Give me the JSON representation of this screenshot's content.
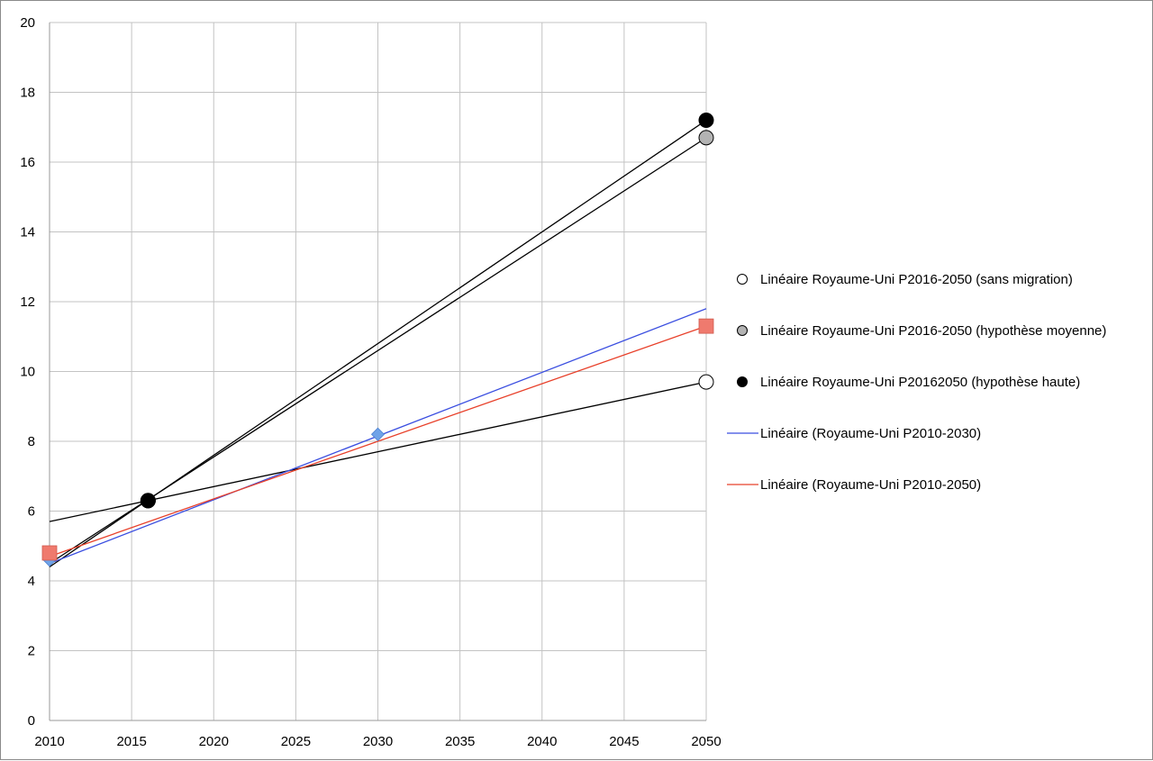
{
  "chart_data": {
    "type": "scatter",
    "title": "",
    "xlabel": "",
    "ylabel": "",
    "xlim": [
      2010,
      2050
    ],
    "ylim": [
      0,
      20
    ],
    "grid": true,
    "legend_position": "right",
    "x_ticks": [
      "2010",
      "2015",
      "2020",
      "2025",
      "2030",
      "2035",
      "2040",
      "2045",
      "2050"
    ],
    "y_ticks": [
      "0",
      "2",
      "4",
      "6",
      "8",
      "10",
      "12",
      "14",
      "16",
      "18",
      "20"
    ],
    "series": [
      {
        "name": "Linéaire Royaume-Uni P2016-2050 (sans migration)",
        "kind": "points",
        "marker": "circle",
        "color": "#ffffff",
        "x": [
          2016,
          2050
        ],
        "y": [
          6.3,
          9.7
        ],
        "trendline": {
          "x": [
            2010,
            2050
          ],
          "y": [
            5.7,
            9.7
          ],
          "color": "#000000"
        }
      },
      {
        "name": "Linéaire Royaume-Uni P2016-2050 (hypothèse moyenne)",
        "kind": "points",
        "marker": "circle",
        "color": "#b3b3b3",
        "x": [
          2016,
          2050
        ],
        "y": [
          6.3,
          16.7
        ],
        "trendline": {
          "x": [
            2010,
            2050
          ],
          "y": [
            4.5,
            16.7
          ],
          "color": "#000000"
        }
      },
      {
        "name": "Linéaire Royaume-Uni P20162050 (hypothèse haute)",
        "kind": "points",
        "marker": "circle",
        "color": "#000000",
        "x": [
          2016,
          2050
        ],
        "y": [
          6.3,
          17.2
        ],
        "trendline": {
          "x": [
            2010,
            2050
          ],
          "y": [
            4.4,
            17.2
          ],
          "color": "#000000"
        }
      },
      {
        "name": "Linéaire (Royaume-Uni P2010-2030)",
        "kind": "line",
        "marker": "diamond",
        "color": "#3a4ee0",
        "marker_color": "#6fa3e8",
        "x": [
          2010,
          2050
        ],
        "y": [
          4.5,
          11.8
        ],
        "points": {
          "x": [
            2010,
            2030
          ],
          "y": [
            4.6,
            8.2
          ]
        }
      },
      {
        "name": "Linéaire (Royaume-Uni P2010-2050)",
        "kind": "line",
        "marker": "square",
        "color": "#e8402a",
        "marker_color": "#ef7a6e",
        "x": [
          2010,
          2050
        ],
        "y": [
          4.7,
          11.3
        ],
        "points": {
          "x": [
            2010,
            2050
          ],
          "y": [
            4.8,
            11.3
          ]
        }
      }
    ]
  }
}
